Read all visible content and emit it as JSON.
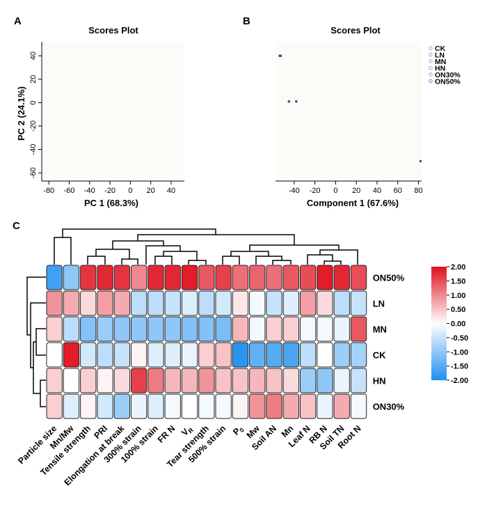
{
  "panels": {
    "a": "A",
    "b": "B",
    "c": "C"
  },
  "chart_data": [
    {
      "type": "scatter",
      "panel": "A",
      "title": "Scores Plot",
      "xlabel": "PC 1 (68.3%)",
      "ylabel": "PC 2 (24.1%)",
      "xlim": [
        -87,
        53
      ],
      "ylim": [
        -67,
        52
      ],
      "xticks": [
        "-80",
        "-60",
        "-40",
        "-20",
        "0",
        "20",
        "40"
      ],
      "yticks": [
        "40",
        "20",
        "0",
        "-20",
        "-40",
        "-60"
      ],
      "series": []
    },
    {
      "type": "scatter",
      "panel": "B",
      "title": "Scores Plot",
      "xlabel": "Component 1 (67.6%)",
      "ylabel": "",
      "xlim": [
        -58,
        83
      ],
      "ylim": [
        -67,
        52
      ],
      "xticks": [
        "-40",
        "-20",
        "0",
        "20",
        "40",
        "60",
        "80"
      ],
      "yticks": [],
      "legend": [
        "CK",
        "LN",
        "MN",
        "HN",
        "ON30%",
        "ON50%"
      ],
      "legend_colors": [
        "#9aa6b3",
        "#9aa6b3",
        "#9aa6b3",
        "#9aa6b3",
        "#9aa6b3",
        "#4d80cc"
      ],
      "series": [
        {
          "name": "points",
          "points": [
            [
              -54,
              40
            ],
            [
              -53,
              40
            ],
            [
              -45,
              1
            ],
            [
              -38,
              1
            ],
            [
              82,
              -50
            ]
          ]
        }
      ]
    },
    {
      "type": "heatmap",
      "panel": "C",
      "columns": [
        "Particle size",
        "Mn/Mw",
        "Tensile strength",
        "PRI",
        "Elongation at break",
        "300% strain",
        "100% strain",
        "FR N",
        "V",
        "Tear strength",
        "500% strain",
        "P",
        "Mw",
        "Soil AN",
        "Mn",
        "Leaf N",
        "RB N",
        "Soil TN",
        "Root N"
      ],
      "rows": [
        "ON50%",
        "LN",
        "MN",
        "CK",
        "HN",
        "ON30%"
      ],
      "values": [
        [
          -1.7,
          -1.0,
          1.7,
          1.8,
          1.7,
          1.0,
          1.8,
          1.8,
          1.9,
          1.4,
          1.6,
          1.2,
          1.3,
          1.2,
          1.4,
          1.5,
          1.9,
          1.8,
          1.5
        ],
        [
          0.9,
          0.7,
          0.3,
          0.8,
          0.7,
          -0.6,
          -0.6,
          -0.5,
          -0.3,
          -0.6,
          -0.4,
          0.2,
          -0.1,
          -0.5,
          -0.3,
          0.8,
          0.3,
          -0.6,
          -0.5
        ],
        [
          0.4,
          -0.6,
          -1.1,
          -0.9,
          -1.0,
          -1.0,
          -1.0,
          -1.0,
          -1.1,
          -1.1,
          -1.2,
          0.6,
          -0.1,
          0.4,
          0.4,
          -0.1,
          -0.1,
          -0.2,
          1.4
        ],
        [
          0.0,
          1.9,
          -0.4,
          -0.6,
          -0.5,
          0.1,
          -0.3,
          -0.3,
          -0.2,
          0.4,
          0.5,
          -1.9,
          -1.4,
          -1.5,
          -1.6,
          -0.6,
          0.0,
          -0.9,
          -0.8
        ],
        [
          0.4,
          0.0,
          0.4,
          0.1,
          0.3,
          1.6,
          1.1,
          0.6,
          0.6,
          0.9,
          0.5,
          0.5,
          0.6,
          0.5,
          0.3,
          -0.9,
          -1.0,
          -0.2,
          -0.5
        ],
        [
          0.4,
          -0.3,
          0.1,
          -0.4,
          -0.9,
          -0.2,
          -0.3,
          -0.1,
          0.0,
          -0.1,
          -0.1,
          0.1,
          0.9,
          1.1,
          0.7,
          0.5,
          -0.2,
          0.7,
          -0.1
        ]
      ],
      "scale": {
        "min": -2,
        "max": 2,
        "colors": {
          "low": "#1f8ff0",
          "mid": "#ffffff",
          "high": "#e0101e"
        },
        "ticks": [
          "2.00",
          "1.50",
          "1.00",
          "0.50",
          "0.00",
          "-0.50",
          "-1.00",
          "-1.50",
          "-2.00"
        ]
      }
    }
  ]
}
